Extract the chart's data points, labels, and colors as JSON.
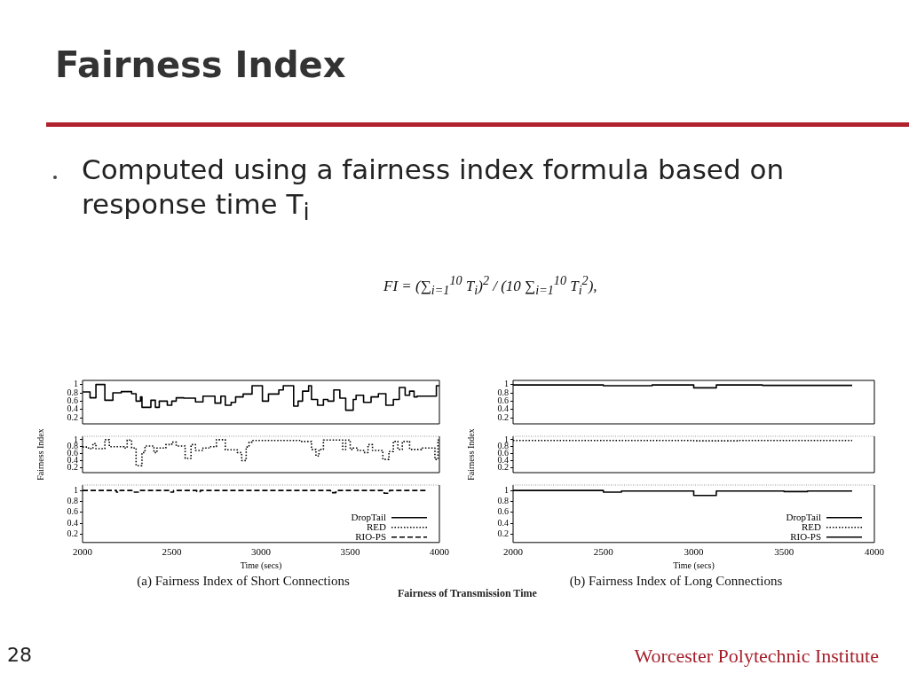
{
  "chart_data": [
    {
      "type": "other",
      "title": "Fairness Index",
      "annotations": [
        "Computed using a fairness index formula based on response time T$_{i}$",
        "FI = (∑$_{i=1}$$^{10}$ T$_{i}$)$^{2}$ / (10 ∑$_{i=1}$$^{10}$ T$_{i}$$^{2}$),",
        "Fairness of Transmission Time",
        "Worcester Polytechnic Institute",
        "28"
      ]
    },
    {
      "type": "step",
      "xlim": [
        2000,
        4000
      ],
      "xticks": [
        2000,
        2500,
        3000,
        3500,
        4000
      ],
      "ylim": [
        0.05,
        1.1
      ],
      "yticks": [
        0.2,
        0.4,
        0.6,
        0.8,
        1
      ],
      "tick_labels": "y",
      "series": [
        {
          "color": "#000000",
          "line_style": "solid",
          "x": [
            2000,
            2042,
            2075,
            2125,
            2170,
            2217,
            2275,
            2300,
            2325,
            2333,
            2383,
            2408,
            2430,
            2475,
            2500,
            2525,
            2567,
            2633,
            2675,
            2742,
            2775,
            2800,
            2833,
            2858,
            2900,
            2950,
            3008,
            3042,
            3100,
            3125,
            3183,
            3208,
            3233,
            3267,
            3283,
            3317,
            3350,
            3375,
            3408,
            3442,
            3475,
            3517,
            3533,
            3575,
            3617,
            3658,
            3700,
            3742,
            3775,
            3808,
            3833,
            3858,
            3875,
            3983,
            4000
          ],
          "values": [
            0.82,
            0.68,
            1.0,
            0.62,
            0.8,
            0.83,
            0.78,
            0.6,
            0.7,
            0.45,
            0.62,
            0.45,
            0.6,
            0.5,
            0.6,
            0.68,
            0.67,
            0.58,
            0.72,
            0.55,
            0.72,
            0.5,
            0.57,
            0.7,
            0.77,
            0.97,
            0.6,
            0.77,
            0.87,
            0.97,
            0.48,
            0.6,
            0.84,
            0.97,
            0.64,
            0.5,
            0.64,
            0.6,
            0.87,
            0.67,
            0.38,
            0.64,
            0.74,
            0.57,
            0.7,
            0.78,
            0.5,
            0.64,
            0.93,
            0.74,
            0.84,
            0.7,
            0.72,
            0.97,
            0.97
          ]
        }
      ]
    },
    {
      "type": "step",
      "xlim": [
        2000,
        4000
      ],
      "xticks": [
        2000,
        2500,
        3000,
        3500,
        4000
      ],
      "ylim": [
        0.05,
        1.1
      ],
      "yticks": [
        0.2,
        0.4,
        0.6,
        0.8,
        1
      ],
      "tick_labels": "y",
      "ylabel": "Fairness Index",
      "series": [
        {
          "color": "#000000",
          "line_style": "dotted",
          "x": [
            2000,
            2033,
            2058,
            2075,
            2125,
            2150,
            2233,
            2250,
            2275,
            2300,
            2333,
            2350,
            2400,
            2417,
            2467,
            2500,
            2525,
            2575,
            2608,
            2633,
            2675,
            2708,
            2750,
            2800,
            2867,
            2892,
            2917,
            2933,
            2950,
            3217,
            3283,
            3308,
            3325,
            3350,
            3458,
            3475,
            3500,
            3517,
            3542,
            3575,
            3600,
            3625,
            3683,
            3717,
            3742,
            3767,
            3792,
            3833,
            3900,
            3975,
            3992,
            4000
          ],
          "values": [
            0.79,
            0.74,
            0.89,
            0.74,
            1.0,
            0.8,
            0.76,
            0.99,
            0.76,
            0.25,
            0.63,
            0.82,
            0.63,
            0.76,
            0.86,
            0.93,
            0.82,
            0.46,
            0.86,
            0.69,
            0.76,
            0.8,
            1.0,
            0.71,
            0.63,
            0.4,
            0.79,
            0.93,
            0.98,
            0.95,
            0.72,
            0.53,
            0.72,
            0.99,
            0.72,
            0.99,
            0.72,
            0.76,
            0.69,
            0.63,
            0.86,
            0.69,
            0.43,
            0.66,
            0.95,
            0.72,
            0.95,
            0.72,
            0.76,
            0.43,
            0.99,
            0.99
          ]
        }
      ]
    },
    {
      "type": "step",
      "xlim": [
        2000,
        4000
      ],
      "xticks": [
        2000,
        2500,
        3000,
        3500,
        4000
      ],
      "ylim": [
        0.05,
        1.1
      ],
      "yticks": [
        0.2,
        0.4,
        0.6,
        0.8,
        1
      ],
      "xlabel": "Time (secs)",
      "legend": "bottom right",
      "annotations": [
        "(a) Fairness Index of Short Connections"
      ],
      "series": [
        {
          "name": "DropTail",
          "color": "#000000",
          "line_style": "solid"
        },
        {
          "name": "RED",
          "color": "#000000",
          "line_style": "dotted"
        },
        {
          "name": "RIO-PS",
          "color": "#000000",
          "line_style": "dashed",
          "x": [
            2000,
            2190,
            2210,
            2290,
            2320,
            2490,
            2510,
            2640,
            2660,
            3390,
            3420,
            3690,
            3720,
            3925
          ],
          "values": [
            1,
            0.97,
            1,
            0.97,
            1,
            0.97,
            1,
            0.98,
            1,
            0.96,
            1,
            0.95,
            1,
            1
          ]
        }
      ]
    },
    {
      "type": "step",
      "xlim": [
        2000,
        4000
      ],
      "xticks": [
        2000,
        2500,
        3000,
        3500,
        4000
      ],
      "ylim": [
        0.05,
        1.1
      ],
      "yticks": [
        0.2,
        0.4,
        0.6,
        0.8,
        1
      ],
      "tick_labels": "y",
      "series": [
        {
          "color": "#000000",
          "line_style": "solid",
          "x": [
            2000,
            2500,
            2770,
            3000,
            3125,
            3380,
            3877
          ],
          "values": [
            0.99,
            0.97,
            0.99,
            0.92,
            0.99,
            0.98,
            0.98
          ]
        }
      ]
    },
    {
      "type": "step",
      "xlim": [
        2000,
        4000
      ],
      "xticks": [
        2000,
        2500,
        3000,
        3500,
        4000
      ],
      "ylim": [
        0.05,
        1.1
      ],
      "yticks": [
        0.2,
        0.4,
        0.6,
        0.8,
        1
      ],
      "tick_labels": "y",
      "ylabel": "Fairness Index",
      "series": [
        {
          "color": "#000000",
          "line_style": "dotted",
          "x": [
            2000,
            3000,
            3250,
            3877
          ],
          "values": [
            0.98,
            0.97,
            0.98,
            0.98
          ]
        }
      ]
    },
    {
      "type": "step",
      "xlim": [
        2000,
        4000
      ],
      "xticks": [
        2000,
        2500,
        3000,
        3500,
        4000
      ],
      "ylim": [
        0.05,
        1.1
      ],
      "yticks": [
        0.2,
        0.4,
        0.6,
        0.8,
        1
      ],
      "xlabel": "Time (secs)",
      "legend": "bottom right",
      "annotations": [
        "(b) Fairness Index of Long Connections"
      ],
      "series": [
        {
          "name": "DropTail",
          "color": "#000000",
          "line_style": "solid"
        },
        {
          "name": "RED",
          "color": "#000000",
          "line_style": "dotted"
        },
        {
          "name": "RIO-PS",
          "color": "#000000",
          "line_style": "solid",
          "x": [
            2000,
            2500,
            2600,
            3000,
            3125,
            3500,
            3630,
            3877
          ],
          "values": [
            1,
            0.97,
            0.99,
            0.91,
            0.99,
            0.98,
            0.99,
            0.99
          ]
        }
      ]
    }
  ]
}
